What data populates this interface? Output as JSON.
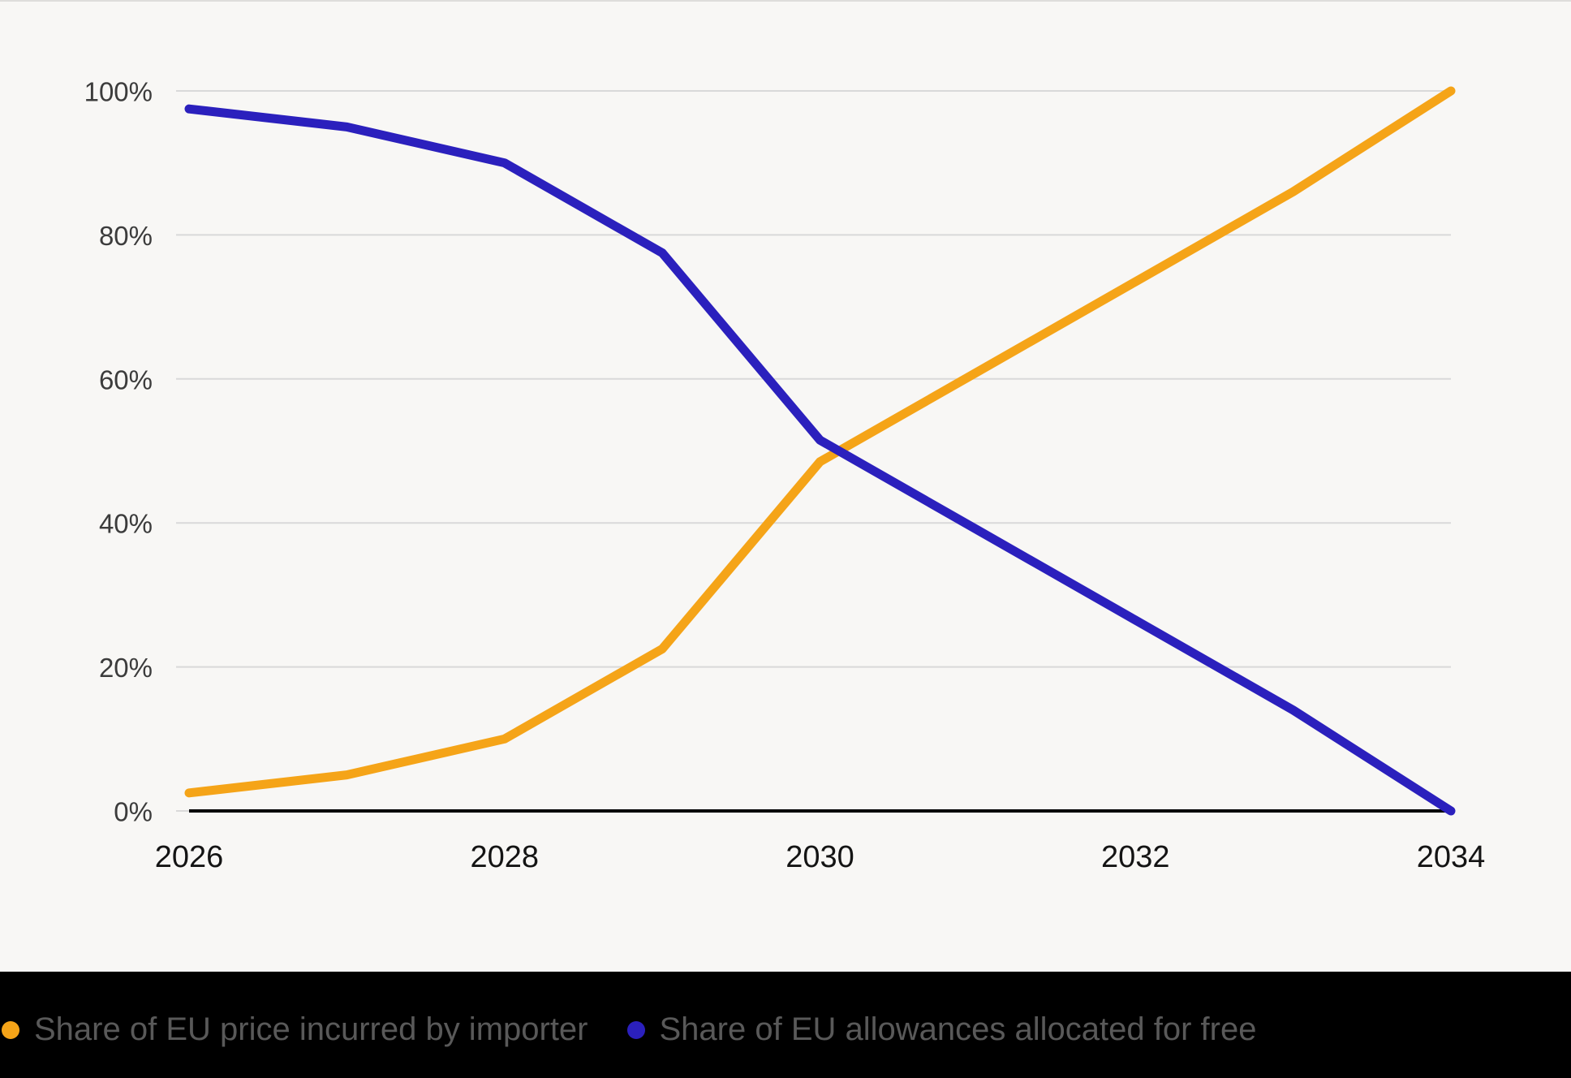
{
  "chart_data": {
    "type": "line",
    "x": [
      2026,
      2027,
      2028,
      2029,
      2030,
      2031,
      2032,
      2033,
      2034
    ],
    "series": [
      {
        "name": "Share of EU price incurred by importer",
        "color": "#F5A418",
        "values": [
          2.5,
          5,
          10,
          22.5,
          48.5,
          61,
          73.5,
          86,
          100
        ]
      },
      {
        "name": "Share of EU allowances allocated for free",
        "color": "#2B20BD",
        "values": [
          97.5,
          95,
          90,
          77.5,
          51.5,
          39,
          26.5,
          14,
          0
        ]
      }
    ],
    "ylim": [
      0,
      100
    ],
    "y_ticks": [
      0,
      20,
      40,
      60,
      80,
      100
    ],
    "y_tick_labels": [
      "0%",
      "20%",
      "40%",
      "60%",
      "80%",
      "100%"
    ],
    "x_ticks": [
      2026,
      2028,
      2030,
      2032,
      2034
    ],
    "x_tick_labels": [
      "2026",
      "2028",
      "2030",
      "2032",
      "2034"
    ],
    "grid": true,
    "legend_position": "bottom"
  },
  "colors": {
    "background": "#F8F7F5",
    "footer_background": "#000000",
    "gridline": "#D9D9D9",
    "axis_line": "#000000",
    "y_tick_label": "#3C3C3C",
    "x_tick_label": "#141414",
    "legend_text": "#595959"
  }
}
